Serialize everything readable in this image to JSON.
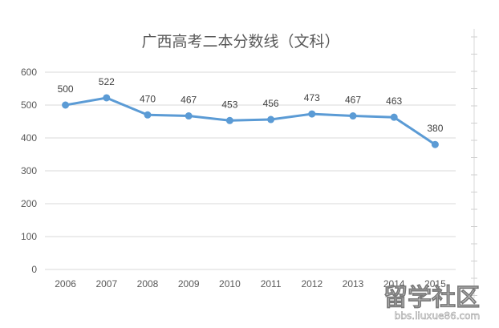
{
  "chart_data": {
    "type": "line",
    "title": "广西高考二本分数线（文科）",
    "xlabel": "",
    "ylabel": "",
    "categories": [
      "2006",
      "2007",
      "2008",
      "2009",
      "2010",
      "2011",
      "2012",
      "2013",
      "2014",
      "2015"
    ],
    "series": [
      {
        "values": [
          500,
          522,
          470,
          467,
          453,
          456,
          473,
          467,
          463,
          380
        ]
      }
    ],
    "ylim": [
      0,
      600
    ],
    "yticks": [
      "0",
      "100",
      "200",
      "300",
      "400",
      "500",
      "600"
    ],
    "data_labels": true,
    "grid": true,
    "legend": "none",
    "colors": {
      "series": "#5b9bd5",
      "grid": "#d9d9d9",
      "text": "#595959"
    }
  },
  "watermark": {
    "logo": "留学社区",
    "url": "bbs.liuxue86.com"
  }
}
